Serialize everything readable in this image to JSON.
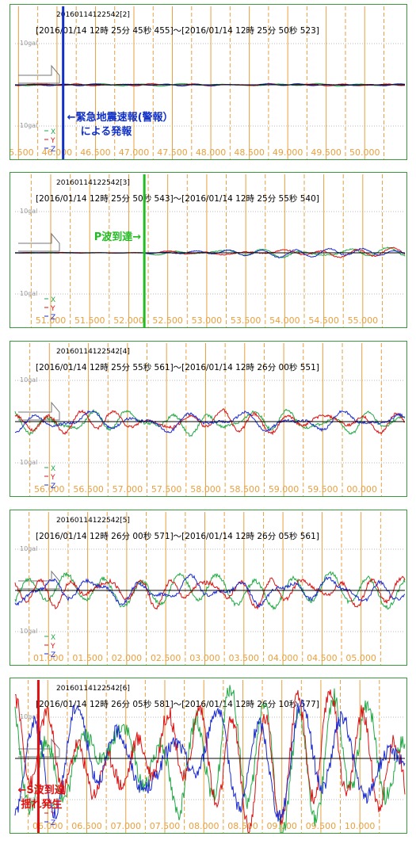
{
  "chart_data": [
    {
      "type": "line",
      "id": "20160114122542[2]",
      "title": "[2016/01/14 12時 25分 45秒 455]～[2016/01/14 12時 25分 50秒 523]",
      "scale_label_top": "10gal",
      "scale_label_bottom": "10gal",
      "legend": [
        "X",
        "Y",
        "Z"
      ],
      "tick_labels": [
        "45.500",
        "46.000",
        "46.500",
        "47.000",
        "47.500",
        "48.000",
        "48.500",
        "49.000",
        "49.500",
        "50.000"
      ],
      "x_range": [
        45.455,
        50.523
      ],
      "amplitude": 0.03,
      "event_marker": {
        "x": 46.08,
        "color": "#1030c8",
        "label_lines": [
          "←緊急地震速報(警報）",
          "による発報"
        ]
      }
    },
    {
      "type": "line",
      "id": "20160114122542[3]",
      "title": "[2016/01/14 12時 25分 50秒 543]～[2016/01/14 12時 25分 55秒 540]",
      "scale_label_top": "10gal",
      "scale_label_bottom": "10gal",
      "legend": [
        "X",
        "Y",
        "Z"
      ],
      "tick_labels": [
        "51.000",
        "51.500",
        "52.000",
        "52.500",
        "53.000",
        "53.500",
        "54.000",
        "54.500",
        "55.000"
      ],
      "x_range": [
        50.543,
        55.54
      ],
      "amplitude": 0.12,
      "onset": 52.2,
      "event_marker": {
        "x": 52.2,
        "color": "#22bb22",
        "label_lines": [
          "P波到達→"
        ]
      }
    },
    {
      "type": "line",
      "id": "20160114122542[4]",
      "title": "[2016/01/14 12時 25分 55秒 561]～[2016/01/14 12時 26分 00秒 551]",
      "scale_label_top": "10gal",
      "scale_label_bottom": "10gal",
      "legend": [
        "X",
        "Y",
        "Z"
      ],
      "tick_labels": [
        "56.000",
        "56.500",
        "57.000",
        "57.500",
        "58.000",
        "58.500",
        "59.000",
        "59.500",
        "00.000"
      ],
      "x_range": [
        55.561,
        60.551
      ],
      "amplitude": 0.28
    },
    {
      "type": "line",
      "id": "20160114122542[5]",
      "title": "[2016/01/14 12時 26分 00秒 571]～[2016/01/14 12時 26分 05秒 561]",
      "scale_label_top": "10gal",
      "scale_label_bottom": "10gal",
      "legend": [
        "X",
        "Y",
        "Z"
      ],
      "tick_labels": [
        "01.000",
        "01.500",
        "02.000",
        "02.500",
        "03.000",
        "03.500",
        "04.000",
        "04.500",
        "05.000"
      ],
      "x_range": [
        0.571,
        5.561
      ],
      "amplitude": 0.38
    },
    {
      "type": "line",
      "id": "20160114122542[6]",
      "title": "[2016/01/14 12時 26分 05秒 581]～[2016/01/14 12時 26分 10秒 577]",
      "scale_label_top": "10gal",
      "scale_label_bottom": "10gal",
      "legend": [
        "X",
        "Y",
        "Z"
      ],
      "tick_labels": [
        "06.000",
        "06.500",
        "07.000",
        "07.500",
        "08.000",
        "08.500",
        "09.000",
        "09.500",
        "10.000"
      ],
      "x_range": [
        5.581,
        10.577
      ],
      "amplitude": 1.6,
      "event_marker": {
        "x": 5.88,
        "color": "#e01010",
        "label_lines": [
          "←S波到達",
          "揺れ発生"
        ]
      }
    }
  ],
  "series_colors": {
    "X": "#22aa44",
    "Y": "#dd1111",
    "Z": "#1a2ad0"
  },
  "colors": {
    "grid": "#e8a040",
    "tick_label": "#e8a040",
    "baseline": "#000000",
    "border": "#3a9a3a"
  }
}
